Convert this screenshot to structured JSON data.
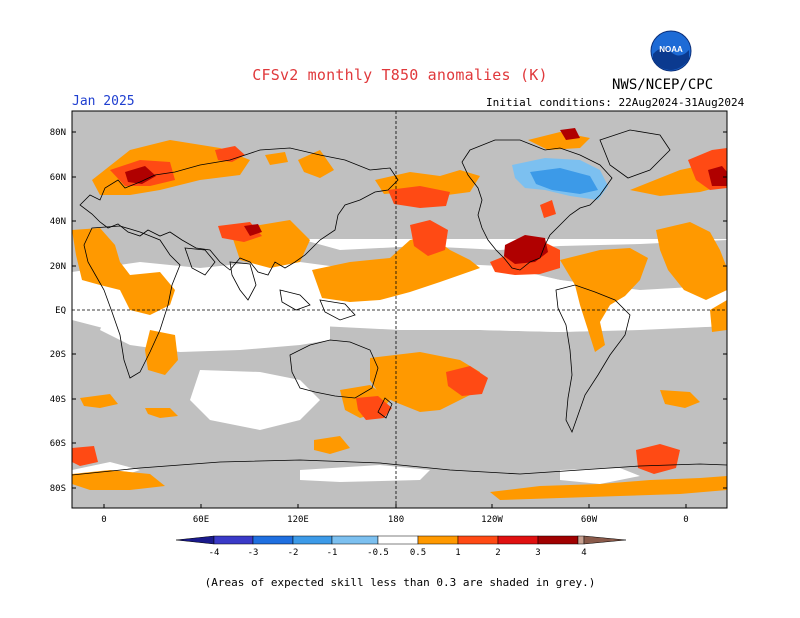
{
  "title": "CFSv2 monthly T850 anomalies (K)",
  "agency": "NWS/NCEP/CPC",
  "logo_text": "NOAA",
  "period": "Jan 2025",
  "initial_conditions": "Initial conditions: 22Aug2024-31Aug2024",
  "lat_labels": [
    "80N",
    "60N",
    "40N",
    "20N",
    "EQ",
    "20S",
    "40S",
    "60S",
    "80S"
  ],
  "lon_labels": [
    "0",
    "60E",
    "120E",
    "180",
    "120W",
    "60W",
    "0"
  ],
  "colorbar": {
    "labels": [
      "-4",
      "-3",
      "-2",
      "-1",
      "-0.5",
      "0.5",
      "1",
      "2",
      "3",
      "4"
    ],
    "colors": [
      "#1a1a8c",
      "#3a3ac8",
      "#1f6fe0",
      "#3c9ae8",
      "#7cc0f0",
      "#ffffff",
      "#ff9900",
      "#ff4a14",
      "#e01010",
      "#a00000",
      "#c8a090",
      "#8a5a4a"
    ]
  },
  "footnote": "(Areas of expected skill less than 0.3 are shaded in grey.)",
  "colors": {
    "grey": "#c0c0c0",
    "orange": "#ff9900",
    "red_orange": "#ff4a14",
    "dark_red": "#b00000",
    "light_blue": "#7cc0f0",
    "mid_blue": "#3c9ae8",
    "title": "#e0393c",
    "period": "#1f3fd0"
  }
}
